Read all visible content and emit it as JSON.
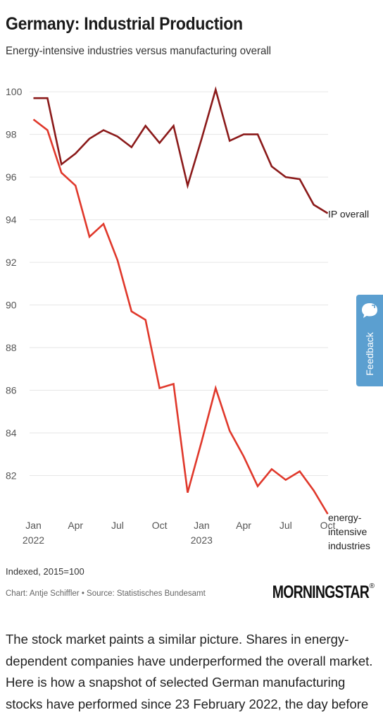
{
  "header": {
    "title": "Germany: Industrial Production",
    "subtitle": "Energy-intensive industries versus manufacturing overall"
  },
  "chart_data": {
    "type": "line",
    "x": [
      "Jan 2022",
      "Feb 2022",
      "Mar 2022",
      "Apr 2022",
      "May 2022",
      "Jun 2022",
      "Jul 2022",
      "Aug 2022",
      "Sep 2022",
      "Oct 2022",
      "Nov 2022",
      "Dec 2022",
      "Jan 2023",
      "Feb 2023",
      "Mar 2023",
      "Apr 2023",
      "May 2023",
      "Jun 2023",
      "Jul 2023",
      "Aug 2023",
      "Sep 2023",
      "Oct 2023"
    ],
    "x_ticks": [
      {
        "index": 0,
        "label": "Jan",
        "sub": "2022"
      },
      {
        "index": 3,
        "label": "Apr",
        "sub": ""
      },
      {
        "index": 6,
        "label": "Jul",
        "sub": ""
      },
      {
        "index": 9,
        "label": "Oct",
        "sub": ""
      },
      {
        "index": 12,
        "label": "Jan",
        "sub": "2023"
      },
      {
        "index": 15,
        "label": "Apr",
        "sub": ""
      },
      {
        "index": 18,
        "label": "Jul",
        "sub": ""
      },
      {
        "index": 21,
        "label": "Oct",
        "sub": ""
      }
    ],
    "y_ticks": [
      82,
      84,
      86,
      88,
      90,
      92,
      94,
      96,
      98,
      100
    ],
    "ylim": [
      80,
      100.5
    ],
    "grid": true,
    "series": [
      {
        "name": "IP overall",
        "color": "#8b1a1a",
        "values": [
          99.7,
          99.7,
          96.6,
          97.1,
          97.8,
          98.2,
          97.9,
          97.4,
          98.4,
          97.6,
          98.4,
          95.6,
          97.8,
          100.1,
          97.7,
          98.0,
          98.0,
          96.5,
          96.0,
          95.9,
          94.7,
          94.3
        ]
      },
      {
        "name": "energy-intensive industries",
        "label_lines": [
          "energy-",
          "intensive",
          "industries"
        ],
        "color": "#e0382b",
        "values": [
          98.7,
          98.2,
          96.2,
          95.6,
          93.2,
          93.8,
          92.1,
          89.7,
          89.3,
          86.1,
          86.3,
          81.2,
          83.6,
          86.1,
          84.1,
          82.9,
          81.5,
          82.3,
          81.8,
          82.2,
          81.3,
          80.2
        ]
      }
    ]
  },
  "footer": {
    "note": "Indexed, 2015=100",
    "credit": "Chart: Antje Schiffler • Source: Statistisches Bundesamt",
    "logo": "MORNINGSTAR",
    "logo_reg": "®"
  },
  "feedback": {
    "label": "Feedback",
    "color": "#5b9fd0",
    "icon": "speech-bubble-icon"
  },
  "article": {
    "text": "The stock market paints a similar picture. Shares in energy-dependent companies have underperformed the overall market. Here is how a snapshot of selected German manufacturing stocks have performed since 23 February 2022, the day before"
  }
}
